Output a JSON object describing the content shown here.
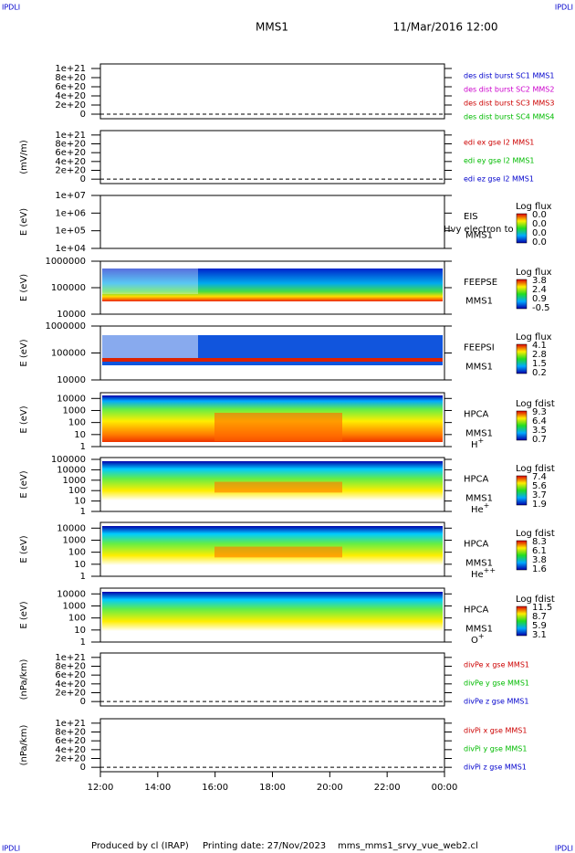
{
  "header": {
    "corner": "IPDLI",
    "title": "MMS1",
    "date": "11/Mar/2016 12:00"
  },
  "footer": [
    "Produced by cl (IRAP)",
    "Printing date: 27/Nov/2023",
    "mms_mms1_srvy_vue_web2.cl"
  ],
  "xticks": [
    "12:00",
    "14:00",
    "16:00",
    "18:00",
    "20:00",
    "22:00",
    "00:00"
  ],
  "panels": [
    {
      "ylim": [
        -1e+20,
        1.1e+21
      ],
      "yticks": [
        {
          "value": 1e+21,
          "label": "1e+21"
        },
        {
          "value": 8e+20,
          "label": "8e+20"
        },
        {
          "value": 6e+20,
          "label": "6e+20"
        },
        {
          "value": 4e+20,
          "label": "4e+20"
        },
        {
          "value": 2e+20,
          "label": "2e+20"
        },
        0
      ],
      "legend": [
        {
          "text": "des dist burst SC1 MMS1",
          "color": "#0000cc"
        },
        {
          "text": "des dist burst SC2 MMS2",
          "color": "#cc00cc"
        },
        {
          "text": "des dist burst SC3 MMS3",
          "color": "#cc0000"
        },
        {
          "text": "des dist burst SC4 MMS4",
          "color": "#00bb00"
        }
      ]
    },
    {
      "ylabel": "(mV/m)",
      "ylim": [
        -1e+20,
        1.1e+21
      ],
      "yticks": [
        {
          "value": 1e+21,
          "label": "1e+21"
        },
        {
          "value": 8e+20,
          "label": "8e+20"
        },
        {
          "value": 6e+20,
          "label": "6e+20"
        },
        {
          "value": 4e+20,
          "label": "4e+20"
        },
        {
          "value": 2e+20,
          "label": "2e+20"
        },
        0
      ],
      "legend": [
        {
          "text": "edi ex gse l2 MMS1",
          "color": "#cc0000"
        },
        {
          "text": "edi ey gse l2 MMS1",
          "color": "#00bb00"
        },
        {
          "text": "edi ez gse l2 MMS1",
          "color": "#0000cc"
        }
      ]
    },
    {
      "ylabel": "E (eV)",
      "log": true,
      "ylim": [
        10000,
        10000000
      ],
      "yticks": [
        {
          "value": 10000000,
          "label": "1e+07"
        },
        {
          "value": 1000000,
          "label": "1e+06"
        },
        {
          "value": 100000,
          "label": "1e+05"
        },
        {
          "value": 10000,
          "label": "1e+04"
        }
      ],
      "side": [
        "EIS",
        "MMS1"
      ],
      "note": "Hvy electron to",
      "colorbar": {
        "title": "Log flux",
        "ticks": [
          "0.0",
          "0.0",
          "0.0",
          "0.0"
        ]
      }
    },
    {
      "ylabel": "E (eV)",
      "log": true,
      "ylim": [
        10000,
        1000000
      ],
      "yticks": [
        1000000,
        100000,
        10000
      ],
      "side": [
        "FEEPSE",
        "MMS1"
      ],
      "colorbar": {
        "title": "Log flux",
        "ticks": [
          "3.8",
          "2.4",
          "0.9",
          "-0.5"
        ]
      }
    },
    {
      "ylabel": "E (eV)",
      "log": true,
      "ylim": [
        10000,
        1000000
      ],
      "yticks": [
        1000000,
        100000,
        10000
      ],
      "side": [
        "FEEPSI",
        "MMS1"
      ],
      "colorbar": {
        "title": "Log flux",
        "ticks": [
          "4.1",
          "2.8",
          "1.5",
          "0.2"
        ]
      }
    },
    {
      "ylabel": "E (eV)",
      "log": true,
      "ylim": [
        1,
        30000
      ],
      "yticks": [
        10000,
        1000,
        100,
        10,
        1
      ],
      "side": [
        "HPCA",
        "MMS1"
      ],
      "species": {
        "base": "H",
        "sup": "+"
      },
      "colorbar": {
        "title": "Log fdist",
        "ticks": [
          "9.3",
          "6.4",
          "3.5",
          "0.7"
        ]
      }
    },
    {
      "ylabel": "E (eV)",
      "log": true,
      "ylim": [
        1,
        150000
      ],
      "yticks": [
        100000,
        10000,
        1000,
        100,
        10,
        1
      ],
      "side": [
        "HPCA",
        "MMS1"
      ],
      "species": {
        "base": "He",
        "sup": "+"
      },
      "colorbar": {
        "title": "Log fdist",
        "ticks": [
          "7.4",
          "5.6",
          "3.7",
          "1.9"
        ]
      }
    },
    {
      "ylabel": "E (eV)",
      "log": true,
      "ylim": [
        1,
        30000
      ],
      "yticks": [
        10000,
        1000,
        100,
        10,
        1
      ],
      "side": [
        "HPCA",
        "MMS1"
      ],
      "species": {
        "base": "He",
        "sup": "++"
      },
      "colorbar": {
        "title": "Log fdist",
        "ticks": [
          "8.3",
          "6.1",
          "3.8",
          "1.6"
        ]
      }
    },
    {
      "ylabel": "E (eV)",
      "log": true,
      "ylim": [
        1,
        30000
      ],
      "yticks": [
        10000,
        1000,
        100,
        10,
        1
      ],
      "side": [
        "HPCA",
        "MMS1"
      ],
      "species": {
        "base": "O",
        "sup": "+"
      },
      "colorbar": {
        "title": "Log fdist",
        "ticks": [
          "11.5",
          "8.7",
          "5.9",
          "3.1"
        ]
      }
    },
    {
      "ylabel": "(nPa/km)",
      "ylim": [
        -1e+20,
        1.1e+21
      ],
      "yticks": [
        {
          "value": 1e+21,
          "label": "1e+21"
        },
        {
          "value": 8e+20,
          "label": "8e+20"
        },
        {
          "value": 6e+20,
          "label": "6e+20"
        },
        {
          "value": 4e+20,
          "label": "4e+20"
        },
        {
          "value": 2e+20,
          "label": "2e+20"
        },
        0
      ],
      "legend": [
        {
          "text": "divPe x gse MMS1",
          "color": "#cc0000"
        },
        {
          "text": "divPe y gse MMS1",
          "color": "#00bb00"
        },
        {
          "text": "divPe z gse MMS1",
          "color": "#0000cc"
        }
      ]
    },
    {
      "ylabel": "(nPa/km)",
      "ylim": [
        -1e+20,
        1.1e+21
      ],
      "yticks": [
        {
          "value": 1e+21,
          "label": "1e+21"
        },
        {
          "value": 8e+20,
          "label": "8e+20"
        },
        {
          "value": 6e+20,
          "label": "6e+20"
        },
        {
          "value": 4e+20,
          "label": "4e+20"
        },
        {
          "value": 2e+20,
          "label": "2e+20"
        },
        0
      ],
      "legend": [
        {
          "text": "divPi x gse MMS1",
          "color": "#cc0000"
        },
        {
          "text": "divPi y gse MMS1",
          "color": "#00bb00"
        },
        {
          "text": "divPi z gse MMS1",
          "color": "#0000cc"
        }
      ]
    }
  ]
}
